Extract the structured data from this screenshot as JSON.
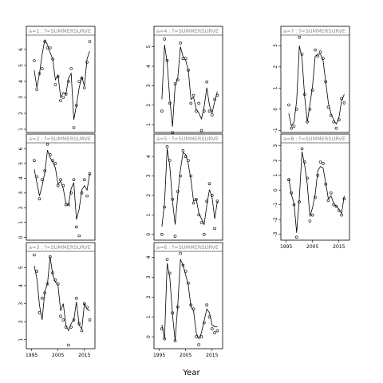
{
  "chart_data": {
    "type": "scatter",
    "xlabel": "Year",
    "panels": [
      {
        "label": "a=1 : f=SUMMERSURVE",
        "ylim": [
          0.8,
          6.9
        ],
        "yticks": [
          1,
          2,
          3,
          4,
          5,
          6
        ],
        "points": {
          "x": [
            1996,
            1997,
            1998,
            1999,
            2000,
            2001,
            2002,
            2003,
            2004,
            2005,
            2006,
            2007,
            2008,
            2009,
            2010,
            2011,
            2012,
            2013,
            2014,
            2015,
            2016,
            2017
          ],
          "y": [
            5.3,
            3.5,
            4.5,
            4.8,
            6.5,
            6.1,
            6.1,
            5.4,
            3.8,
            4.3,
            2.8,
            3.0,
            3.2,
            4.0,
            4.8,
            1.1,
            2.5,
            4.0,
            4.2,
            3.6,
            5.2,
            6.5
          ]
        },
        "fit": {
          "x": [
            1996,
            1997,
            1998,
            1999,
            2000,
            2001,
            2002,
            2003,
            2004,
            2005,
            2006,
            2007,
            2008,
            2009,
            2010,
            2011,
            2012,
            2013,
            2014,
            2015,
            2016,
            2017
          ],
          "y": [
            4.7,
            3.6,
            4.5,
            5.7,
            6.6,
            6.3,
            5.8,
            5.4,
            4.1,
            4.4,
            3.0,
            3.3,
            3.2,
            4.2,
            4.5,
            1.6,
            2.5,
            3.6,
            4.3,
            3.7,
            5.4,
            5.9
          ]
        }
      },
      {
        "label": "a=2 : f=SUMMERSURVE",
        "ylim": [
          -0.2,
          6.4
        ],
        "yticks": [
          0,
          1,
          2,
          3,
          4,
          5,
          6
        ],
        "points": {
          "x": [
            1996,
            1997,
            1998,
            1999,
            2000,
            2001,
            2002,
            2003,
            2004,
            2005,
            2006,
            2007,
            2008,
            2009,
            2010,
            2011,
            2012,
            2013,
            2014,
            2015,
            2016,
            2017
          ],
          "y": [
            5.2,
            4.1,
            2.6,
            3.9,
            4.5,
            6.3,
            5.6,
            5.2,
            5.0,
            3.5,
            3.9,
            3.5,
            2.2,
            2.2,
            3.0,
            3.9,
            0.7,
            0.1,
            3.0,
            3.9,
            2.8,
            4.3
          ]
        },
        "fit": {
          "x": [
            1996,
            1997,
            1998,
            1999,
            2000,
            2001,
            2002,
            2003,
            2004,
            2005,
            2006,
            2007,
            2008,
            2009,
            2010,
            2011,
            2012,
            2013,
            2014,
            2015,
            2016,
            2017
          ],
          "y": [
            4.6,
            3.7,
            2.8,
            3.5,
            4.4,
            5.9,
            5.4,
            5.1,
            4.7,
            3.6,
            3.8,
            3.3,
            2.3,
            2.2,
            3.3,
            3.7,
            1.2,
            1.9,
            3.2,
            3.5,
            3.2,
            4.3
          ]
        }
      },
      {
        "label": "a=3 : f=SUMMERSURVE",
        "ylim": [
          0.5,
          5.9
        ],
        "yticks": [
          1,
          2,
          3,
          4,
          5
        ],
        "points": {
          "x": [
            1996,
            1997,
            1998,
            1999,
            2000,
            2001,
            2002,
            2003,
            2004,
            2005,
            2006,
            2007,
            2008,
            2009,
            2010,
            2011,
            2012,
            2013,
            2014,
            2015,
            2016,
            2017
          ],
          "y": [
            5.7,
            4.8,
            2.5,
            3.3,
            3.6,
            4.1,
            5.6,
            4.7,
            4.3,
            4.1,
            2.3,
            2.1,
            1.7,
            0.7,
            1.7,
            2.1,
            3.3,
            1.9,
            1.5,
            3.0,
            2.8,
            2.1
          ]
        },
        "fit": {
          "x": [
            1996,
            1997,
            1998,
            1999,
            2000,
            2001,
            2002,
            2003,
            2004,
            2005,
            2006,
            2007,
            2008,
            2009,
            2010,
            2011,
            2012,
            2013,
            2014,
            2015,
            2016,
            2017
          ],
          "y": [
            5.1,
            4.4,
            2.9,
            2.1,
            3.7,
            4.1,
            5.6,
            4.6,
            4.2,
            4.0,
            2.6,
            3.0,
            1.8,
            1.5,
            1.9,
            2.1,
            3.1,
            1.8,
            1.6,
            3.0,
            2.7,
            2.6
          ]
        }
      },
      {
        "label": "a=4 : f=SUMMERSURVE",
        "ylim": [
          0.6,
          5.6
        ],
        "yticks": [
          1,
          2,
          3,
          4,
          5
        ],
        "points": {
          "x": [
            1996,
            1997,
            1998,
            1999,
            2000,
            2001,
            2002,
            2003,
            2004,
            2005,
            2006,
            2007,
            2008,
            2009,
            2010,
            2011,
            2012,
            2013,
            2014,
            2015,
            2016,
            2017
          ],
          "y": [
            1.7,
            5.4,
            4.3,
            2.1,
            0.6,
            3.1,
            3.3,
            5.2,
            4.4,
            4.4,
            3.8,
            2.1,
            2.5,
            1.7,
            2.1,
            0.7,
            1.7,
            3.2,
            1.7,
            1.5,
            2.3,
            2.5
          ]
        },
        "fit": {
          "x": [
            1996,
            1997,
            1998,
            1999,
            2000,
            2001,
            2002,
            2003,
            2004,
            2005,
            2006,
            2007,
            2008,
            2009,
            2010,
            2011,
            2012,
            2013,
            2014,
            2015,
            2016,
            2017
          ],
          "y": [
            2.3,
            5.1,
            4.2,
            2.3,
            0.9,
            3.0,
            3.4,
            5.0,
            4.5,
            4.3,
            3.8,
            2.3,
            2.4,
            1.8,
            1.6,
            1.3,
            1.9,
            2.9,
            2.0,
            1.6,
            2.2,
            2.7
          ]
        }
      },
      {
        "label": "a=5 : f=SUMMERSURVE",
        "ylim": [
          -0.3,
          4.7
        ],
        "yticks": [
          0,
          1,
          2,
          3,
          4
        ],
        "points": {
          "x": [
            1996,
            1997,
            1998,
            1999,
            2000,
            2001,
            2002,
            2003,
            2004,
            2005,
            2006,
            2007,
            2008,
            2009,
            2010,
            2011,
            2012,
            2013,
            2014,
            2015,
            2016,
            2017
          ],
          "y": [
            0.0,
            1.4,
            4.5,
            3.8,
            1.8,
            -0.1,
            2.2,
            3.0,
            4.3,
            4.0,
            3.8,
            3.0,
            1.6,
            1.8,
            1.0,
            0.6,
            0.0,
            1.7,
            2.6,
            2.0,
            0.3,
            1.7
          ]
        },
        "fit": {
          "x": [
            1996,
            1997,
            1998,
            1999,
            2000,
            2001,
            2002,
            2003,
            2004,
            2005,
            2006,
            2007,
            2008,
            2009,
            2010,
            2011,
            2012,
            2013,
            2014,
            2015,
            2016,
            2017
          ],
          "y": [
            0.4,
            1.6,
            4.4,
            3.5,
            1.7,
            0.5,
            2.0,
            3.3,
            4.2,
            4.1,
            3.6,
            2.8,
            1.7,
            1.8,
            1.1,
            0.8,
            0.5,
            1.5,
            2.3,
            1.9,
            0.8,
            1.7
          ]
        }
      },
      {
        "label": "a=6 : f=SUMMERSURVE",
        "ylim": [
          -0.6,
          4.3
        ],
        "yticks": [
          0,
          1,
          2,
          3,
          4
        ],
        "points": {
          "x": [
            1996,
            1997,
            1998,
            1999,
            2000,
            2001,
            2002,
            2003,
            2004,
            2005,
            2006,
            2007,
            2008,
            2009,
            2010,
            2011,
            2012,
            2013,
            2014,
            2015,
            2016,
            2017
          ],
          "y": [
            0.4,
            -0.1,
            3.9,
            3.2,
            1.2,
            -0.2,
            1.5,
            4.2,
            3.6,
            3.3,
            2.7,
            1.6,
            1.4,
            0.0,
            -0.4,
            0.0,
            0.7,
            1.6,
            1.0,
            0.4,
            0.2,
            0.3
          ]
        },
        "fit": {
          "x": [
            1996,
            1997,
            1998,
            1999,
            2000,
            2001,
            2002,
            2003,
            2004,
            2005,
            2006,
            2007,
            2008,
            2009,
            2010,
            2011,
            2012,
            2013,
            2014,
            2015,
            2016,
            2017
          ],
          "y": [
            0.6,
            -0.1,
            3.7,
            3.0,
            1.1,
            -0.2,
            1.6,
            3.9,
            3.6,
            3.1,
            2.6,
            1.5,
            1.3,
            0.2,
            -0.1,
            0.2,
            0.8,
            1.4,
            1.2,
            0.6,
            0.5,
            0.5
          ]
        }
      },
      {
        "label": "a=7 : f=SUMMERSURVE",
        "ylim": [
          -1.1,
          3.5
        ],
        "yticks": [
          -1,
          0,
          1,
          2,
          3
        ],
        "points": {
          "x": [
            1996,
            1997,
            1998,
            1999,
            2000,
            2001,
            2002,
            2003,
            2004,
            2005,
            2006,
            2007,
            2008,
            2009,
            2010,
            2011,
            2012,
            2013,
            2014,
            2015,
            2016,
            2017
          ],
          "y": [
            0.2,
            -0.9,
            -0.8,
            0.0,
            3.4,
            2.6,
            0.7,
            -0.6,
            0.0,
            0.9,
            2.8,
            2.5,
            2.7,
            2.4,
            1.3,
            0.1,
            -0.3,
            -0.6,
            -0.9,
            -0.5,
            0.5,
            0.3
          ]
        },
        "fit": {
          "x": [
            1996,
            1997,
            1998,
            1999,
            2000,
            2001,
            2002,
            2003,
            2004,
            2005,
            2006,
            2007,
            2008,
            2009,
            2010,
            2011,
            2012,
            2013,
            2014,
            2015,
            2016,
            2017
          ],
          "y": [
            -0.2,
            -0.8,
            -0.6,
            0.4,
            3.0,
            2.4,
            0.6,
            -0.6,
            0.2,
            1.1,
            2.5,
            2.6,
            2.6,
            2.3,
            1.3,
            0.3,
            -0.2,
            -0.5,
            -0.7,
            -0.4,
            0.4,
            0.7
          ]
        }
      },
      {
        "label": "a=8 : f=SUMMERSURVE",
        "ylim": [
          -3.4,
          3.2
        ],
        "yticks": [
          -3,
          -2,
          -1,
          0,
          1,
          2,
          3
        ],
        "points": {
          "x": [
            1996,
            1997,
            1998,
            1999,
            2000,
            2001,
            2002,
            2003,
            2004,
            2005,
            2006,
            2007,
            2008,
            2009,
            2010,
            2011,
            2012,
            2013,
            2014,
            2015,
            2016,
            2017
          ],
          "y": [
            0.7,
            -0.2,
            -1.0,
            -3.2,
            -0.8,
            2.8,
            1.9,
            0.8,
            -2.1,
            -1.7,
            -0.5,
            1.0,
            1.9,
            1.8,
            0.4,
            -0.7,
            -0.2,
            -1.0,
            -1.1,
            -1.4,
            -1.7,
            -0.6
          ]
        },
        "fit": {
          "x": [
            1996,
            1997,
            1998,
            1999,
            2000,
            2001,
            2002,
            2003,
            2004,
            2005,
            2006,
            2007,
            2008,
            2009,
            2010,
            2011,
            2012,
            2013,
            2014,
            2015,
            2016,
            2017
          ],
          "y": [
            0.8,
            -0.3,
            -0.9,
            -2.9,
            -0.5,
            2.6,
            1.7,
            0.4,
            -1.8,
            -1.2,
            -0.3,
            1.3,
            1.6,
            1.5,
            0.5,
            -0.6,
            -0.4,
            -0.9,
            -1.1,
            -1.3,
            -1.6,
            -0.4
          ]
        }
      }
    ],
    "xlim": [
      1993,
      2019
    ],
    "xticks": [
      1995,
      2005,
      2015
    ],
    "grid": false
  }
}
